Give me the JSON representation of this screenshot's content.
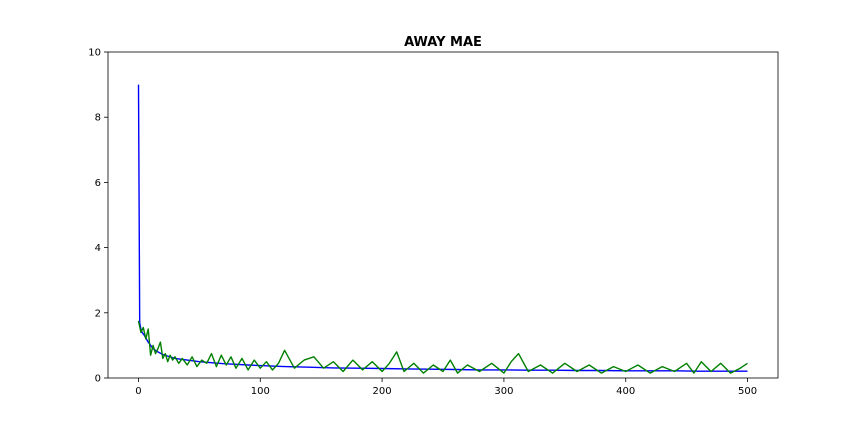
{
  "chart_data": {
    "type": "line",
    "title": "AWAY MAE",
    "xlabel": "",
    "ylabel": "",
    "xlim": [
      -25,
      525
    ],
    "ylim": [
      0,
      10
    ],
    "x_ticks": [
      0,
      100,
      200,
      300,
      400,
      500
    ],
    "y_ticks": [
      0,
      2,
      4,
      6,
      8,
      10
    ],
    "grid": false,
    "legend": "none",
    "series": [
      {
        "color": "#0000ff",
        "x": [
          0,
          1,
          2,
          3,
          5,
          8,
          12,
          16,
          20,
          25,
          30,
          40,
          50,
          60,
          70,
          80,
          90,
          100,
          120,
          140,
          160,
          180,
          200,
          220,
          240,
          260,
          280,
          300,
          320,
          340,
          360,
          380,
          400,
          420,
          440,
          460,
          480,
          500
        ],
        "values": [
          9.0,
          1.7,
          1.5,
          1.4,
          1.3,
          1.1,
          0.9,
          0.8,
          0.72,
          0.66,
          0.6,
          0.55,
          0.5,
          0.47,
          0.44,
          0.42,
          0.4,
          0.38,
          0.35,
          0.33,
          0.31,
          0.3,
          0.29,
          0.28,
          0.27,
          0.26,
          0.25,
          0.25,
          0.24,
          0.24,
          0.23,
          0.23,
          0.22,
          0.22,
          0.22,
          0.21,
          0.21,
          0.21
        ]
      },
      {
        "color": "#008000",
        "x": [
          0,
          2,
          4,
          6,
          8,
          10,
          12,
          14,
          16,
          18,
          20,
          22,
          24,
          26,
          28,
          30,
          33,
          36,
          40,
          44,
          48,
          52,
          56,
          60,
          64,
          68,
          72,
          76,
          80,
          85,
          90,
          95,
          100,
          105,
          110,
          115,
          120,
          128,
          136,
          144,
          152,
          160,
          168,
          176,
          184,
          192,
          200,
          206,
          212,
          218,
          226,
          234,
          242,
          250,
          256,
          262,
          270,
          280,
          290,
          300,
          306,
          312,
          320,
          330,
          340,
          350,
          360,
          370,
          380,
          390,
          400,
          410,
          420,
          430,
          440,
          450,
          456,
          462,
          470,
          478,
          486,
          494,
          500
        ],
        "values": [
          1.75,
          1.4,
          1.55,
          1.2,
          1.5,
          0.7,
          1.0,
          0.75,
          0.9,
          1.1,
          0.6,
          0.75,
          0.5,
          0.7,
          0.55,
          0.65,
          0.45,
          0.6,
          0.4,
          0.65,
          0.35,
          0.55,
          0.45,
          0.75,
          0.35,
          0.7,
          0.4,
          0.65,
          0.3,
          0.6,
          0.25,
          0.55,
          0.3,
          0.5,
          0.25,
          0.45,
          0.85,
          0.3,
          0.55,
          0.65,
          0.3,
          0.5,
          0.2,
          0.55,
          0.25,
          0.5,
          0.2,
          0.45,
          0.8,
          0.2,
          0.45,
          0.15,
          0.4,
          0.2,
          0.55,
          0.15,
          0.4,
          0.2,
          0.45,
          0.15,
          0.5,
          0.75,
          0.2,
          0.4,
          0.15,
          0.45,
          0.2,
          0.4,
          0.15,
          0.35,
          0.2,
          0.4,
          0.15,
          0.35,
          0.2,
          0.45,
          0.15,
          0.5,
          0.2,
          0.45,
          0.15,
          0.3,
          0.45
        ]
      }
    ]
  }
}
